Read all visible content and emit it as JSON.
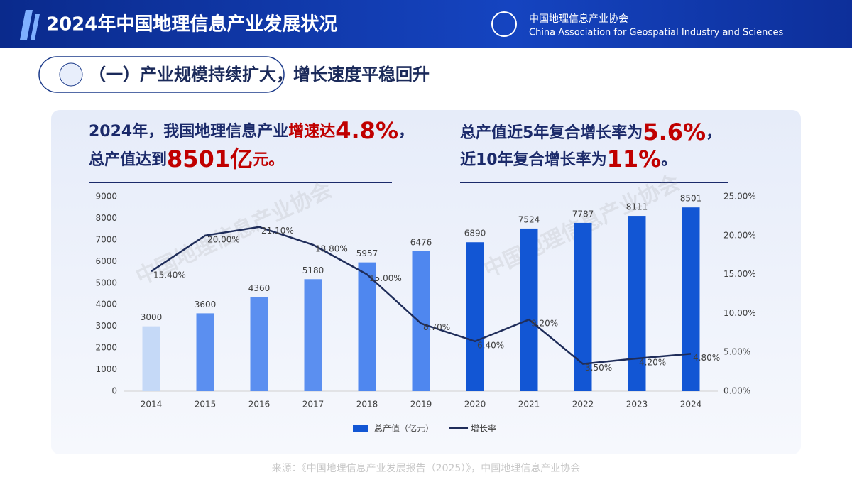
{
  "header": {
    "title": "2024年中国地理信息产业发展状况",
    "org_cn": "中国地理信息产业协会",
    "org_en": "China Association for Geospatial Industry and Sciences"
  },
  "section_title": "（一）产业规模持续扩大，增长速度平稳回升",
  "highlights": {
    "left": [
      [
        "2024年，我国地理信息产业",
        "增速达",
        "4.8%",
        "，"
      ],
      [
        "总产值达到",
        "8501亿",
        "元。"
      ]
    ],
    "right": [
      [
        "总产值近5年复合增长率为",
        "5.6%",
        "，"
      ],
      [
        "近10年复合增长率为",
        "11%",
        "。"
      ]
    ]
  },
  "watermark": "中国地理信息产业协会",
  "chart_data": {
    "type": "bar-line",
    "categories": [
      "2014",
      "2015",
      "2016",
      "2017",
      "2018",
      "2019",
      "2020",
      "2021",
      "2022",
      "2023",
      "2024"
    ],
    "series": [
      {
        "name": "总产值（亿元）",
        "type": "bar",
        "color": "#1256d4",
        "colors": [
          "#c5d9f7",
          "#5b8ff0",
          "#5b8ff0",
          "#5b8ff0",
          "#4f87ef",
          "#4f87ef",
          "#1256d4",
          "#1256d4",
          "#1256d4",
          "#1256d4",
          "#1256d4"
        ],
        "values": [
          3000,
          3600,
          4360,
          5180,
          5957,
          6476,
          6890,
          7524,
          7787,
          8111,
          8501
        ]
      },
      {
        "name": "增长率",
        "type": "line",
        "axis": "y2",
        "color": "#1f2d5a",
        "values": [
          15.4,
          20.0,
          21.1,
          18.8,
          15.0,
          8.7,
          6.4,
          9.2,
          3.5,
          4.2,
          4.8
        ],
        "value_labels": [
          "15.40%",
          "20.00%",
          "21.10%",
          "18.80%",
          "15.00%",
          "8.70%",
          "6.40%",
          "9.20%",
          "3.50%",
          "4.20%",
          "4.80%"
        ]
      }
    ],
    "ylim": [
      0,
      9000
    ],
    "yticks": [
      0,
      1000,
      2000,
      3000,
      4000,
      5000,
      6000,
      7000,
      8000,
      9000
    ],
    "y2lim": [
      0,
      25
    ],
    "y2ticks": [
      {
        "value": 0,
        "label": "0.00%"
      },
      {
        "value": 5,
        "label": "5.00%"
      },
      {
        "value": 10,
        "label": "10.00%"
      },
      {
        "value": 15,
        "label": "15.00%"
      },
      {
        "value": 20,
        "label": "20.00%"
      },
      {
        "value": 25,
        "label": "25.00%"
      }
    ],
    "grid": false,
    "legend": "bottom"
  },
  "source": "来源：《中国地理信息产业发展报告（2025）》，中国地理信息产业协会"
}
